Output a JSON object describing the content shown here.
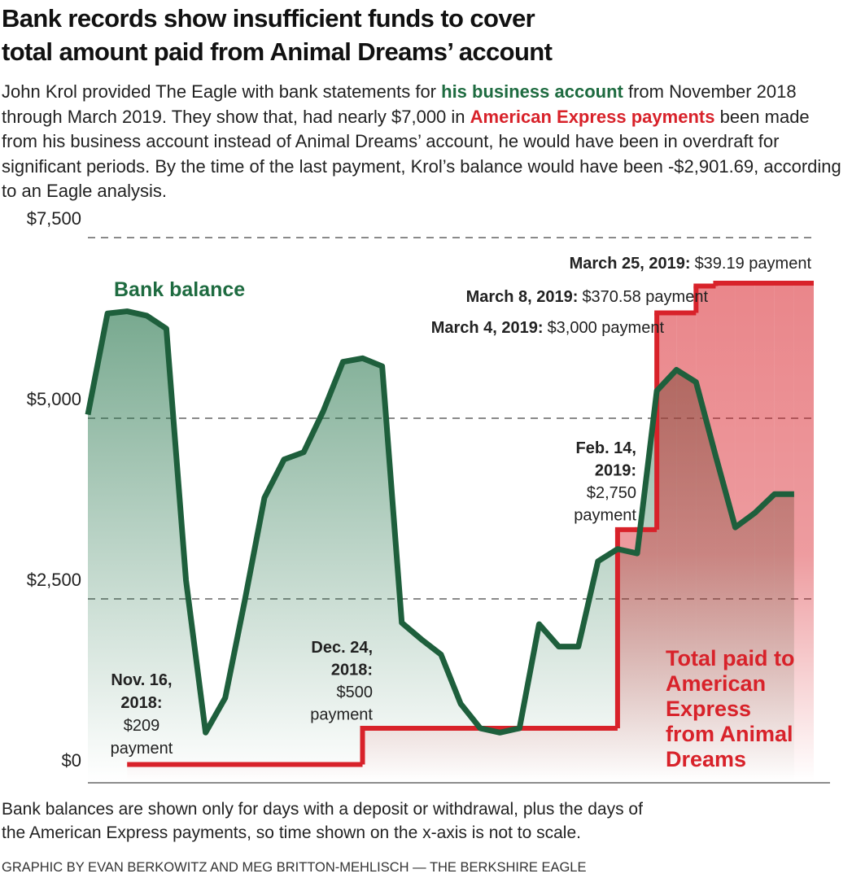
{
  "chart_data": {
    "type": "line",
    "title": [
      "Bank records show insufficient funds to cover",
      "total amount paid from Animal Dreams’ account"
    ],
    "subtitle_parts": [
      "John Krol provided The Eagle with bank statements for ",
      "his business account",
      " from November 2018 through March 2019. They show that, had nearly $7,000 in ",
      "American Express payments",
      " been made from his business account instead of Animal Dreams’ account, he would have been in overdraft for significant periods. By the time of the last payment, Krol’s balance would have been -$2,901.69, according to an Eagle analysis."
    ],
    "categories": [
      null,
      null,
      null,
      null,
      null,
      null,
      null,
      null,
      null,
      null,
      null,
      null,
      null,
      null,
      null,
      null,
      null,
      null,
      null,
      null,
      null,
      null,
      null,
      null,
      null,
      null,
      null,
      null,
      null,
      null,
      null,
      null,
      null,
      null,
      null,
      null,
      null
    ],
    "series": [
      {
        "name": "Bank balance",
        "color": "#1e5f3c",
        "values": [
          5050,
          6450,
          6480,
          6420,
          6240,
          2760,
          650,
          1130,
          2480,
          3900,
          4430,
          4530,
          5100,
          5780,
          5830,
          5720,
          2170,
          1940,
          1730,
          1050,
          710,
          650,
          710,
          2150,
          1840,
          1840,
          3020,
          3190,
          3130,
          5380,
          5670,
          5500,
          4480,
          3490,
          3690,
          3950,
          3950
        ]
      },
      {
        "name": "Total paid to American Express from Animal Dreams",
        "color": "#d8222a",
        "step": true,
        "values": [
          null,
          null,
          209,
          209,
          209,
          209,
          209,
          209,
          209,
          209,
          209,
          209,
          209,
          209,
          709,
          709,
          709,
          709,
          709,
          709,
          709,
          709,
          709,
          709,
          709,
          709,
          709,
          3459,
          3459,
          6459,
          6459,
          6829.77,
          6868.96,
          6868.96,
          6868.96,
          6868.96,
          6868.96
        ]
      }
    ],
    "ylim": [
      0,
      7500
    ],
    "yticks": [
      {
        "value": 0,
        "label": "$0"
      },
      {
        "value": 2500,
        "label": "$2,500"
      },
      {
        "value": 5000,
        "label": "$5,000"
      },
      {
        "value": 7500,
        "label": "$7,500"
      }
    ],
    "grid": true,
    "annotations": [
      {
        "bold_lines": [
          "March 25, 2019:"
        ],
        "lines": [
          "$39.19 payment"
        ]
      },
      {
        "bold_lines": [
          "March 8, 2019:"
        ],
        "lines": [
          "$370.58 payment"
        ]
      },
      {
        "bold_lines": [
          "March 4, 2019:"
        ],
        "lines": [
          "$3,000 payment"
        ]
      },
      {
        "bold_lines": [
          "Feb. 14,",
          "2019:"
        ],
        "lines": [
          "$2,750",
          "payment"
        ]
      },
      {
        "bold_lines": [
          "Dec. 24,",
          "2018:"
        ],
        "lines": [
          "$500",
          "payment"
        ]
      },
      {
        "bold_lines": [
          "Nov. 16,",
          "2018:"
        ],
        "lines": [
          "$209",
          "payment"
        ]
      }
    ],
    "note": [
      "Bank balances are shown only for days with a deposit or withdrawal, plus the days of",
      "the American Express payments, so time shown on the x-axis is not to scale."
    ],
    "credit": "GRAPHIC BY EVAN BERKOWITZ AND MEG BRITTON-MEHLISCH — THE BERKSHIRE EAGLE"
  }
}
